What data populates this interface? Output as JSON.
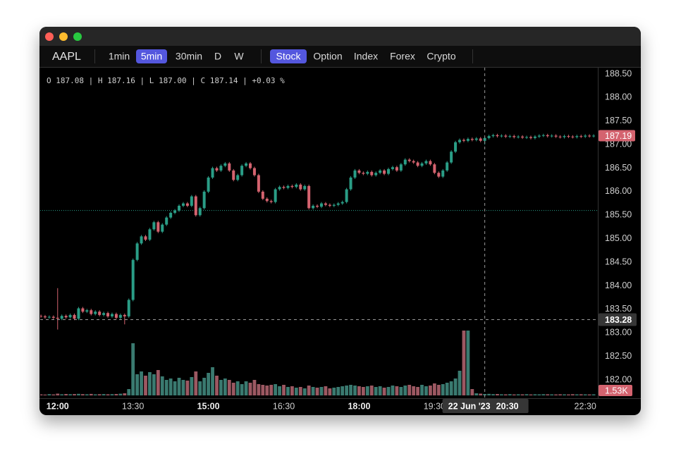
{
  "toolbar": {
    "symbol": "AAPL",
    "intervals": [
      "1min",
      "5min",
      "30min",
      "D",
      "W"
    ],
    "active_interval": "5min",
    "markets": [
      "Stock",
      "Option",
      "Index",
      "Forex",
      "Crypto"
    ],
    "active_market": "Stock"
  },
  "chart_data": {
    "type": "candlestick",
    "ohlc_legend": "O 187.08 | H 187.16 | L 187.00 | C 187.14 | +0.03 %",
    "categories": [
      "11:40",
      "11:45",
      "11:50",
      "11:55",
      "12:00",
      "12:05",
      "12:10",
      "12:15",
      "12:20",
      "12:25",
      "12:30",
      "12:35",
      "12:40",
      "12:45",
      "12:50",
      "12:55",
      "13:00",
      "13:05",
      "13:10",
      "13:15",
      "13:20",
      "13:25",
      "13:30",
      "13:35",
      "13:40",
      "13:45",
      "13:50",
      "13:55",
      "14:00",
      "14:05",
      "14:10",
      "14:15",
      "14:20",
      "14:25",
      "14:30",
      "14:35",
      "14:40",
      "14:45",
      "14:50",
      "14:55",
      "15:00",
      "15:05",
      "15:10",
      "15:15",
      "15:20",
      "15:25",
      "15:30",
      "15:35",
      "15:40",
      "15:45",
      "15:50",
      "15:55",
      "16:00",
      "16:05",
      "16:10",
      "16:15",
      "16:20",
      "16:25",
      "16:30",
      "16:35",
      "16:40",
      "16:45",
      "16:50",
      "16:55",
      "17:00",
      "17:05",
      "17:10",
      "17:15",
      "17:20",
      "17:25",
      "17:30",
      "17:35",
      "17:40",
      "17:45",
      "17:50",
      "17:55",
      "18:00",
      "18:05",
      "18:10",
      "18:15",
      "18:20",
      "18:25",
      "18:30",
      "18:35",
      "18:40",
      "18:45",
      "18:50",
      "18:55",
      "19:00",
      "19:05",
      "19:10",
      "19:15",
      "19:20",
      "19:25",
      "19:30",
      "19:35",
      "19:40",
      "19:45",
      "19:50",
      "19:55",
      "20:00",
      "20:05",
      "20:10",
      "20:15",
      "20:20",
      "20:25",
      "20:30",
      "20:35",
      "20:40",
      "20:45",
      "20:50",
      "20:55",
      "21:00",
      "21:05",
      "21:10",
      "21:15",
      "21:20",
      "21:25",
      "21:30",
      "21:35",
      "21:40",
      "21:45",
      "21:50",
      "21:55",
      "22:00",
      "22:05",
      "22:10",
      "22:15",
      "22:20",
      "22:25",
      "22:30",
      "22:35",
      "22:40"
    ],
    "open": [
      183.36,
      183.35,
      183.33,
      183.34,
      183.32,
      183.3,
      183.36,
      183.33,
      183.38,
      183.3,
      183.52,
      183.45,
      183.48,
      183.4,
      183.45,
      183.38,
      183.42,
      183.35,
      183.4,
      183.32,
      183.38,
      183.35,
      183.7,
      184.55,
      184.9,
      185.05,
      184.98,
      185.2,
      185.35,
      185.15,
      185.3,
      185.45,
      185.55,
      185.6,
      185.7,
      185.75,
      185.7,
      185.9,
      185.5,
      185.65,
      186.0,
      186.3,
      186.5,
      186.45,
      186.55,
      186.6,
      186.45,
      186.25,
      186.35,
      186.55,
      186.6,
      186.5,
      186.35,
      186.0,
      185.85,
      185.8,
      185.78,
      186.05,
      186.1,
      186.08,
      186.12,
      186.1,
      186.15,
      186.05,
      186.12,
      185.65,
      185.7,
      185.68,
      185.75,
      185.72,
      185.7,
      185.72,
      185.75,
      185.78,
      186.05,
      186.3,
      186.45,
      186.4,
      186.38,
      186.42,
      186.35,
      186.4,
      186.45,
      186.38,
      186.48,
      186.52,
      186.45,
      186.58,
      186.68,
      186.65,
      186.62,
      186.55,
      186.6,
      186.65,
      186.58,
      186.4,
      186.32,
      186.45,
      186.62,
      186.85,
      187.05,
      187.1,
      187.08,
      187.12,
      187.1,
      187.13,
      187.08,
      187.14,
      187.18,
      187.2,
      187.18,
      187.19,
      187.17,
      187.18,
      187.16,
      187.17,
      187.15,
      187.16,
      187.14,
      187.17,
      187.19,
      187.2,
      187.18,
      187.19,
      187.17,
      187.16,
      187.18,
      187.17,
      187.16,
      187.18,
      187.17,
      187.19,
      187.18
    ],
    "high": [
      183.39,
      183.38,
      183.37,
      183.37,
      183.95,
      183.39,
      183.39,
      183.41,
      183.41,
      183.55,
      183.55,
      183.51,
      183.51,
      183.48,
      183.48,
      183.45,
      183.45,
      183.43,
      183.43,
      183.41,
      183.41,
      183.73,
      184.58,
      184.93,
      185.08,
      185.08,
      185.23,
      185.38,
      185.38,
      185.33,
      185.48,
      185.58,
      185.63,
      185.73,
      185.78,
      185.78,
      185.93,
      185.93,
      185.68,
      186.03,
      186.33,
      186.53,
      186.53,
      186.58,
      186.63,
      186.63,
      186.48,
      186.38,
      186.58,
      186.63,
      186.63,
      186.53,
      186.38,
      186.03,
      185.88,
      185.83,
      186.08,
      186.13,
      186.13,
      186.15,
      186.15,
      186.18,
      186.18,
      186.15,
      186.15,
      185.73,
      185.73,
      185.78,
      185.78,
      185.75,
      185.75,
      185.78,
      185.81,
      186.08,
      186.33,
      186.48,
      186.48,
      186.43,
      186.45,
      186.45,
      186.43,
      186.48,
      186.48,
      186.51,
      186.55,
      186.55,
      186.61,
      186.71,
      186.71,
      186.68,
      186.65,
      186.63,
      186.68,
      186.68,
      186.61,
      186.43,
      186.48,
      186.65,
      186.88,
      187.08,
      187.13,
      187.13,
      187.15,
      187.15,
      187.16,
      187.16,
      187.16,
      187.21,
      187.23,
      187.23,
      187.22,
      187.22,
      187.21,
      187.21,
      187.2,
      187.2,
      187.19,
      187.19,
      187.2,
      187.22,
      187.23,
      187.23,
      187.22,
      187.22,
      187.2,
      187.21,
      187.21,
      187.2,
      187.21,
      187.21,
      187.22,
      187.22,
      187.22
    ],
    "low": [
      183.32,
      183.3,
      183.3,
      183.29,
      183.07,
      183.27,
      183.3,
      183.3,
      183.27,
      183.27,
      183.42,
      183.42,
      183.37,
      183.37,
      183.35,
      183.35,
      183.32,
      183.32,
      183.29,
      183.29,
      183.18,
      183.32,
      183.67,
      184.52,
      184.87,
      184.95,
      184.95,
      185.17,
      185.12,
      185.12,
      185.27,
      185.42,
      185.52,
      185.57,
      185.67,
      185.67,
      185.67,
      185.47,
      185.47,
      185.62,
      185.97,
      186.27,
      186.42,
      186.42,
      186.52,
      186.42,
      186.22,
      186.22,
      186.32,
      186.52,
      186.47,
      186.32,
      185.97,
      185.82,
      185.77,
      185.75,
      185.75,
      186.02,
      186.05,
      186.05,
      186.07,
      186.07,
      186.02,
      186.02,
      185.62,
      185.62,
      185.65,
      185.65,
      185.69,
      185.67,
      185.67,
      185.69,
      185.72,
      185.75,
      186.02,
      186.27,
      186.37,
      186.35,
      186.35,
      186.32,
      186.32,
      186.37,
      186.35,
      186.35,
      186.45,
      186.42,
      186.42,
      186.55,
      186.62,
      186.59,
      186.52,
      186.52,
      186.57,
      186.55,
      186.37,
      186.29,
      186.29,
      186.42,
      186.59,
      186.82,
      187.02,
      187.05,
      187.05,
      187.07,
      187.07,
      187.05,
      187.0,
      187.11,
      187.15,
      187.15,
      187.15,
      187.14,
      187.14,
      187.13,
      187.13,
      187.12,
      187.12,
      187.11,
      187.11,
      187.14,
      187.16,
      187.15,
      187.15,
      187.14,
      187.13,
      187.13,
      187.14,
      187.13,
      187.13,
      187.14,
      187.14,
      187.15,
      187.15
    ],
    "close": [
      183.35,
      183.33,
      183.34,
      183.32,
      183.3,
      183.36,
      183.33,
      183.38,
      183.3,
      183.52,
      183.45,
      183.48,
      183.4,
      183.45,
      183.38,
      183.42,
      183.35,
      183.4,
      183.32,
      183.38,
      183.35,
      183.7,
      184.55,
      184.9,
      185.05,
      184.98,
      185.2,
      185.35,
      185.15,
      185.3,
      185.45,
      185.55,
      185.6,
      185.7,
      185.75,
      185.7,
      185.9,
      185.5,
      185.65,
      186.0,
      186.3,
      186.5,
      186.45,
      186.55,
      186.6,
      186.45,
      186.25,
      186.35,
      186.55,
      186.6,
      186.5,
      186.35,
      186.0,
      185.85,
      185.8,
      185.78,
      186.05,
      186.1,
      186.08,
      186.12,
      186.1,
      186.15,
      186.05,
      186.12,
      185.65,
      185.7,
      185.68,
      185.75,
      185.72,
      185.7,
      185.72,
      185.75,
      185.78,
      186.05,
      186.3,
      186.45,
      186.4,
      186.38,
      186.42,
      186.35,
      186.4,
      186.45,
      186.38,
      186.48,
      186.52,
      186.45,
      186.58,
      186.68,
      186.65,
      186.62,
      186.55,
      186.6,
      186.65,
      186.58,
      186.4,
      186.32,
      186.45,
      186.62,
      186.85,
      187.05,
      187.1,
      187.08,
      187.12,
      187.1,
      187.13,
      187.08,
      187.14,
      187.18,
      187.2,
      187.18,
      187.19,
      187.17,
      187.18,
      187.16,
      187.17,
      187.15,
      187.16,
      187.14,
      187.17,
      187.19,
      187.2,
      187.18,
      187.19,
      187.17,
      187.16,
      187.18,
      187.17,
      187.16,
      187.18,
      187.17,
      187.19,
      187.18,
      187.19
    ],
    "volume": [
      1500,
      1200,
      1800,
      1400,
      2500,
      1600,
      2000,
      1700,
      1900,
      2200,
      1800,
      1600,
      2100,
      1500,
      1700,
      1900,
      1600,
      1800,
      2000,
      2400,
      3000,
      9000,
      74000,
      30000,
      34000,
      28000,
      33000,
      30000,
      36000,
      27000,
      22000,
      24000,
      20000,
      25000,
      22000,
      21000,
      26000,
      34000,
      20000,
      25000,
      32000,
      40000,
      28000,
      22000,
      24000,
      22000,
      18000,
      20000,
      16000,
      20000,
      18000,
      22000,
      16000,
      15000,
      14000,
      15000,
      16000,
      13000,
      15000,
      12000,
      13000,
      11000,
      12000,
      10000,
      14000,
      12000,
      11000,
      12000,
      13000,
      10000,
      11000,
      12000,
      13000,
      14000,
      15000,
      14000,
      13000,
      12000,
      13000,
      14000,
      12000,
      13000,
      11000,
      12000,
      14000,
      13000,
      12000,
      14000,
      15000,
      13000,
      12000,
      15000,
      13000,
      14000,
      17000,
      15000,
      16000,
      18000,
      20000,
      24000,
      35000,
      92000,
      92000,
      9000,
      3000,
      2500,
      2000,
      2200,
      1800,
      2000,
      1600,
      1500,
      1800,
      1400,
      1600,
      1500,
      1700,
      1400,
      1600,
      1500,
      1700,
      1600,
      1500,
      1400,
      1600,
      1500,
      1400,
      1700,
      1500,
      1600,
      1500,
      1400,
      1530
    ],
    "last_volume_label": "1.53K",
    "xticks": [
      "12:00",
      "13:30",
      "15:00",
      "16:30",
      "18:00",
      "19:30",
      "22:30"
    ],
    "ylim": [
      181.5,
      188.5
    ],
    "yticks": [
      {
        "value": 182.0,
        "label": "182.00"
      },
      {
        "value": 182.5,
        "label": "182.50"
      },
      {
        "value": 183.0,
        "label": "183.00"
      },
      {
        "value": 183.5,
        "label": "183.50"
      },
      {
        "value": 184.0,
        "label": "184.00"
      },
      {
        "value": 184.5,
        "label": "184.50"
      },
      {
        "value": 185.0,
        "label": "185.00"
      },
      {
        "value": 185.5,
        "label": "185.50"
      },
      {
        "value": 186.0,
        "label": "186.00"
      },
      {
        "value": 186.5,
        "label": "186.50"
      },
      {
        "value": 187.0,
        "label": "187.00"
      },
      {
        "value": 187.5,
        "label": "187.50"
      },
      {
        "value": 188.0,
        "label": "188.00"
      },
      {
        "value": 188.5,
        "label": "188.50"
      }
    ],
    "volume_ylim": [
      0,
      465000
    ],
    "price_line": 185.6,
    "crosshair": {
      "price": 183.28,
      "date_label": "22 Jun '23",
      "time": "20:30"
    },
    "up_color": "#2a9d86",
    "down_color": "#d4636f",
    "volume_up_color": "#3a7a70",
    "volume_down_color": "#9c5862"
  }
}
